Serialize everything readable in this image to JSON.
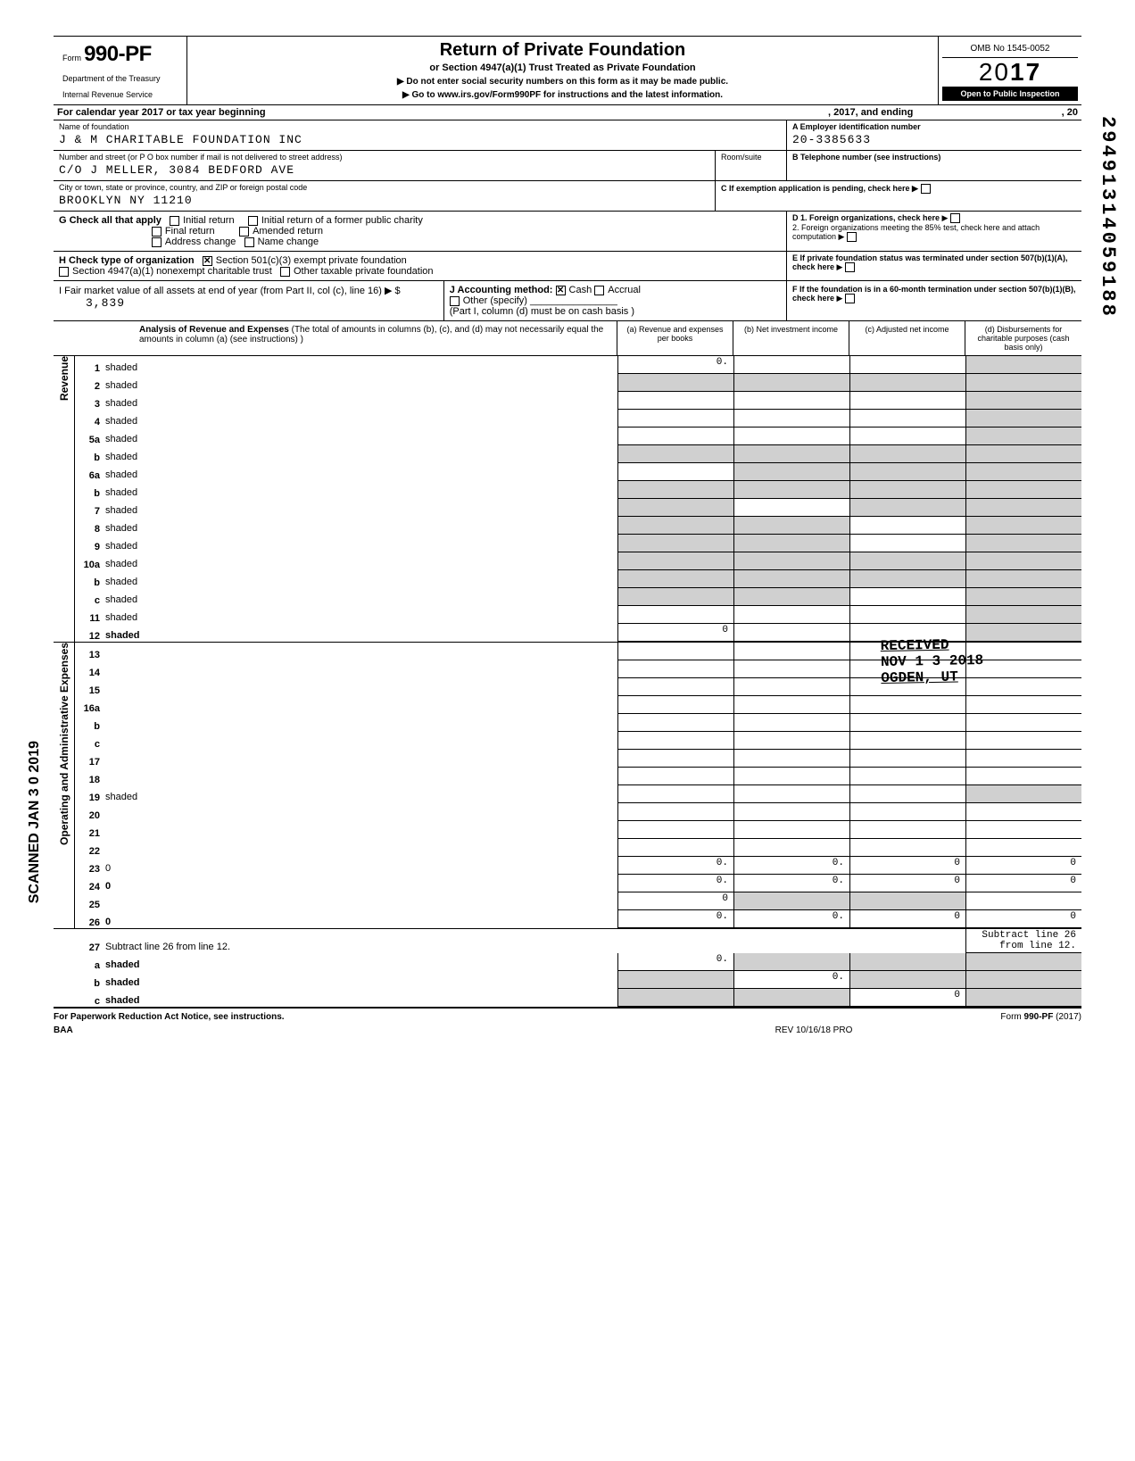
{
  "form": {
    "form_word": "Form",
    "number": "990-PF",
    "dept1": "Department of the Treasury",
    "dept2": "Internal Revenue Service",
    "title": "Return of Private Foundation",
    "subtitle": "or Section 4947(a)(1) Trust Treated as Private Foundation",
    "instr1": "▶ Do not enter social security numbers on this form as it may be made public.",
    "instr2": "▶ Go to www.irs.gov/Form990PF for instructions and the latest information.",
    "omb": "OMB No 1545-0052",
    "year_prefix": "20",
    "year_bold": "17",
    "open_public": "Open to Public Inspection"
  },
  "cal": {
    "left": "For calendar year 2017 or tax year beginning",
    "mid": ", 2017, and ending",
    "right": ", 20"
  },
  "id": {
    "name_label": "Name of foundation",
    "name": "J & M CHARITABLE FOUNDATION INC",
    "a_label": "A  Employer identification number",
    "ein": "20-3385633",
    "street_label": "Number and street (or P O  box number if mail is not delivered to street address)",
    "street": "C/O J MELLER, 3084 BEDFORD AVE",
    "room_label": "Room/suite",
    "b_label": "B  Telephone number (see instructions)",
    "city_label": "City or town, state or province, country, and ZIP or foreign postal code",
    "city": "BROOKLYN NY 11210",
    "c_label": "C  If exemption application is pending, check here ▶"
  },
  "g": {
    "label": "G  Check all that apply",
    "opt1": "Initial return",
    "opt2": "Final return",
    "opt3": "Address change",
    "opt4": "Initial return of a former public charity",
    "opt5": "Amended return",
    "opt6": "Name change",
    "d_label": "D  1. Foreign organizations, check here",
    "d2_label": "2. Foreign organizations meeting the 85% test, check here and attach computation",
    "e_label": "E  If private foundation status was terminated under section 507(b)(1)(A), check here"
  },
  "h": {
    "label": "H  Check type of organization",
    "opt1": "Section 501(c)(3) exempt private foundation",
    "opt2": "Section 4947(a)(1) nonexempt charitable trust",
    "opt3": "Other taxable private foundation"
  },
  "i": {
    "left1": "I   Fair market value of all assets at end of year  (from Part II, col  (c), line 16) ▶ $",
    "value": "3,839",
    "mid_label": "J   Accounting method:",
    "mid_cash": "Cash",
    "mid_accrual": "Accrual",
    "mid_other": "Other (specify)",
    "mid_note": "(Part I, column (d) must be on cash basis )",
    "f_label": "F  If the foundation is in a 60-month termination under section 507(b)(1)(B), check here"
  },
  "part1": {
    "analysis_bold": "Analysis of Revenue and Expenses",
    "analysis_rest": " (The total of amounts in columns (b), (c), and (d) may not necessarily equal the amounts in column (a) (see instructions) )",
    "col_a": "(a) Revenue and expenses per books",
    "col_b": "(b) Net investment income",
    "col_c": "(c) Adjusted net income",
    "col_d": "(d) Disbursements for charitable purposes (cash basis only)"
  },
  "sections": {
    "revenue": "Revenue",
    "expenses": "Operating and Administrative Expenses"
  },
  "lines": [
    {
      "n": "1",
      "d": "shaded",
      "a": "0.",
      "b": "",
      "c": ""
    },
    {
      "n": "2",
      "d": "shaded",
      "a": "shaded",
      "b": "shaded",
      "c": "shaded"
    },
    {
      "n": "3",
      "d": "shaded",
      "a": "",
      "b": "",
      "c": ""
    },
    {
      "n": "4",
      "d": "shaded",
      "a": "",
      "b": "",
      "c": ""
    },
    {
      "n": "5a",
      "d": "shaded",
      "a": "",
      "b": "",
      "c": ""
    },
    {
      "n": "b",
      "d": "shaded",
      "a": "shaded",
      "b": "shaded",
      "c": "shaded"
    },
    {
      "n": "6a",
      "d": "shaded",
      "a": "",
      "b": "shaded",
      "c": "shaded"
    },
    {
      "n": "b",
      "d": "shaded",
      "a": "shaded",
      "b": "shaded",
      "c": "shaded"
    },
    {
      "n": "7",
      "d": "shaded",
      "a": "shaded",
      "b": "",
      "c": "shaded"
    },
    {
      "n": "8",
      "d": "shaded",
      "a": "shaded",
      "b": "shaded",
      "c": ""
    },
    {
      "n": "9",
      "d": "shaded",
      "a": "shaded",
      "b": "shaded",
      "c": ""
    },
    {
      "n": "10a",
      "d": "shaded",
      "a": "shaded",
      "b": "shaded",
      "c": "shaded"
    },
    {
      "n": "b",
      "d": "shaded",
      "a": "shaded",
      "b": "shaded",
      "c": "shaded"
    },
    {
      "n": "c",
      "d": "shaded",
      "a": "shaded",
      "b": "shaded",
      "c": ""
    },
    {
      "n": "11",
      "d": "shaded",
      "a": "",
      "b": "",
      "c": ""
    },
    {
      "n": "12",
      "d": "shaded",
      "a": "0",
      "b": "",
      "c": "",
      "bold": true
    }
  ],
  "exp_lines": [
    {
      "n": "13",
      "d": "",
      "a": "",
      "b": "",
      "c": ""
    },
    {
      "n": "14",
      "d": "",
      "a": "",
      "b": "",
      "c": ""
    },
    {
      "n": "15",
      "d": "",
      "a": "",
      "b": "",
      "c": ""
    },
    {
      "n": "16a",
      "d": "",
      "a": "",
      "b": "",
      "c": ""
    },
    {
      "n": "b",
      "d": "",
      "a": "",
      "b": "",
      "c": ""
    },
    {
      "n": "c",
      "d": "",
      "a": "",
      "b": "",
      "c": ""
    },
    {
      "n": "17",
      "d": "",
      "a": "",
      "b": "",
      "c": ""
    },
    {
      "n": "18",
      "d": "",
      "a": "",
      "b": "",
      "c": ""
    },
    {
      "n": "19",
      "d": "shaded",
      "a": "",
      "b": "",
      "c": ""
    },
    {
      "n": "20",
      "d": "",
      "a": "",
      "b": "",
      "c": ""
    },
    {
      "n": "21",
      "d": "",
      "a": "",
      "b": "",
      "c": ""
    },
    {
      "n": "22",
      "d": "",
      "a": "",
      "b": "",
      "c": ""
    },
    {
      "n": "23",
      "d": "0",
      "a": "0.",
      "b": "0.",
      "c": "0"
    },
    {
      "n": "24",
      "d": "0",
      "a": "0.",
      "b": "0.",
      "c": "0",
      "bold": true
    },
    {
      "n": "25",
      "d": "",
      "a": "0",
      "b": "shaded",
      "c": "shaded"
    },
    {
      "n": "26",
      "d": "0",
      "a": "0.",
      "b": "0.",
      "c": "0",
      "bold": true
    }
  ],
  "bottom_lines": [
    {
      "n": "27",
      "d": "Subtract line 26 from line 12."
    },
    {
      "n": "a",
      "d": "shaded",
      "a": "0.",
      "b": "shaded",
      "c": "shaded",
      "bold": true
    },
    {
      "n": "b",
      "d": "shaded",
      "a": "shaded",
      "b": "0.",
      "c": "shaded",
      "bold": true
    },
    {
      "n": "c",
      "d": "shaded",
      "a": "shaded",
      "b": "shaded",
      "c": "0",
      "bold": true
    }
  ],
  "footer": {
    "left": "For Paperwork Reduction Act Notice, see instructions.",
    "baa": "BAA",
    "mid": "REV 10/16/18 PRO",
    "right": "Form 990-PF (2017)"
  },
  "stamps": {
    "scanned": "SCANNED JAN 3 0 2019",
    "dln": "29491314059188",
    "received": "RECEIVED",
    "recv_date": "NOV 1 3 2018",
    "recv_loc": "OGDEN, UT"
  },
  "colors": {
    "text": "#000000",
    "bg": "#ffffff",
    "shaded": "#d0d0d0",
    "black_bg": "#000000"
  }
}
